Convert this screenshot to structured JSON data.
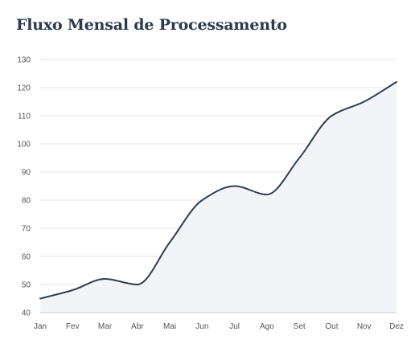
{
  "chart_data": {
    "type": "line",
    "title": "Fluxo Mensal de Processamento",
    "categories": [
      "Jan",
      "Fev",
      "Mar",
      "Abr",
      "Mai",
      "Jun",
      "Jul",
      "Ago",
      "Set",
      "Out",
      "Nov",
      "Dez"
    ],
    "series": [
      {
        "values": [
          45,
          48,
          52,
          50,
          65,
          80,
          85,
          82,
          95,
          110,
          115,
          122
        ]
      }
    ],
    "yticks": [
      40,
      50,
      60,
      70,
      80,
      90,
      100,
      110,
      120,
      130
    ],
    "ylim": [
      40,
      130
    ],
    "xlabel": "",
    "ylabel": "",
    "grid": true,
    "area_fill": true,
    "line_color": "#2f3e52",
    "area_color": "#f3f4f7"
  }
}
